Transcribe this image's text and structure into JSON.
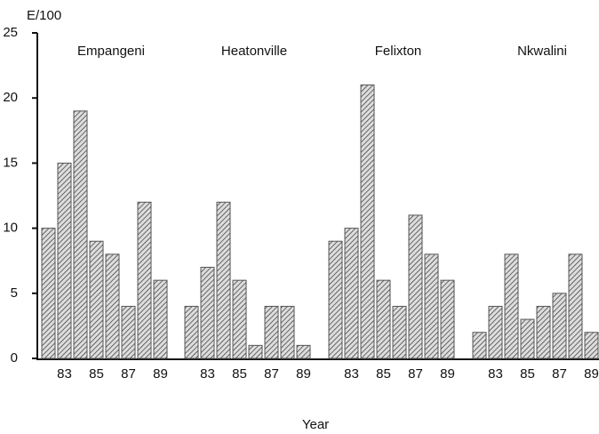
{
  "chart_data": {
    "type": "bar",
    "ylabel": "E/100",
    "xlabel": "Year",
    "categories": [
      null,
      "83",
      null,
      "85",
      null,
      "87",
      null,
      "89"
    ],
    "groups": [
      {
        "name": "Empangeni",
        "values": [
          10,
          15,
          19,
          9,
          8,
          4,
          12,
          6
        ]
      },
      {
        "name": "Heatonville",
        "values": [
          4,
          7,
          12,
          6,
          1,
          4,
          4,
          1
        ]
      },
      {
        "name": "Felixton",
        "values": [
          9,
          10,
          21,
          6,
          4,
          11,
          8,
          6
        ]
      },
      {
        "name": "Nkwalini",
        "values": [
          2,
          4,
          8,
          3,
          4,
          5,
          8,
          2
        ]
      }
    ],
    "ylim": [
      0,
      25
    ],
    "yticks": [
      0,
      5,
      10,
      15,
      20,
      25
    ],
    "color": "#555555"
  }
}
